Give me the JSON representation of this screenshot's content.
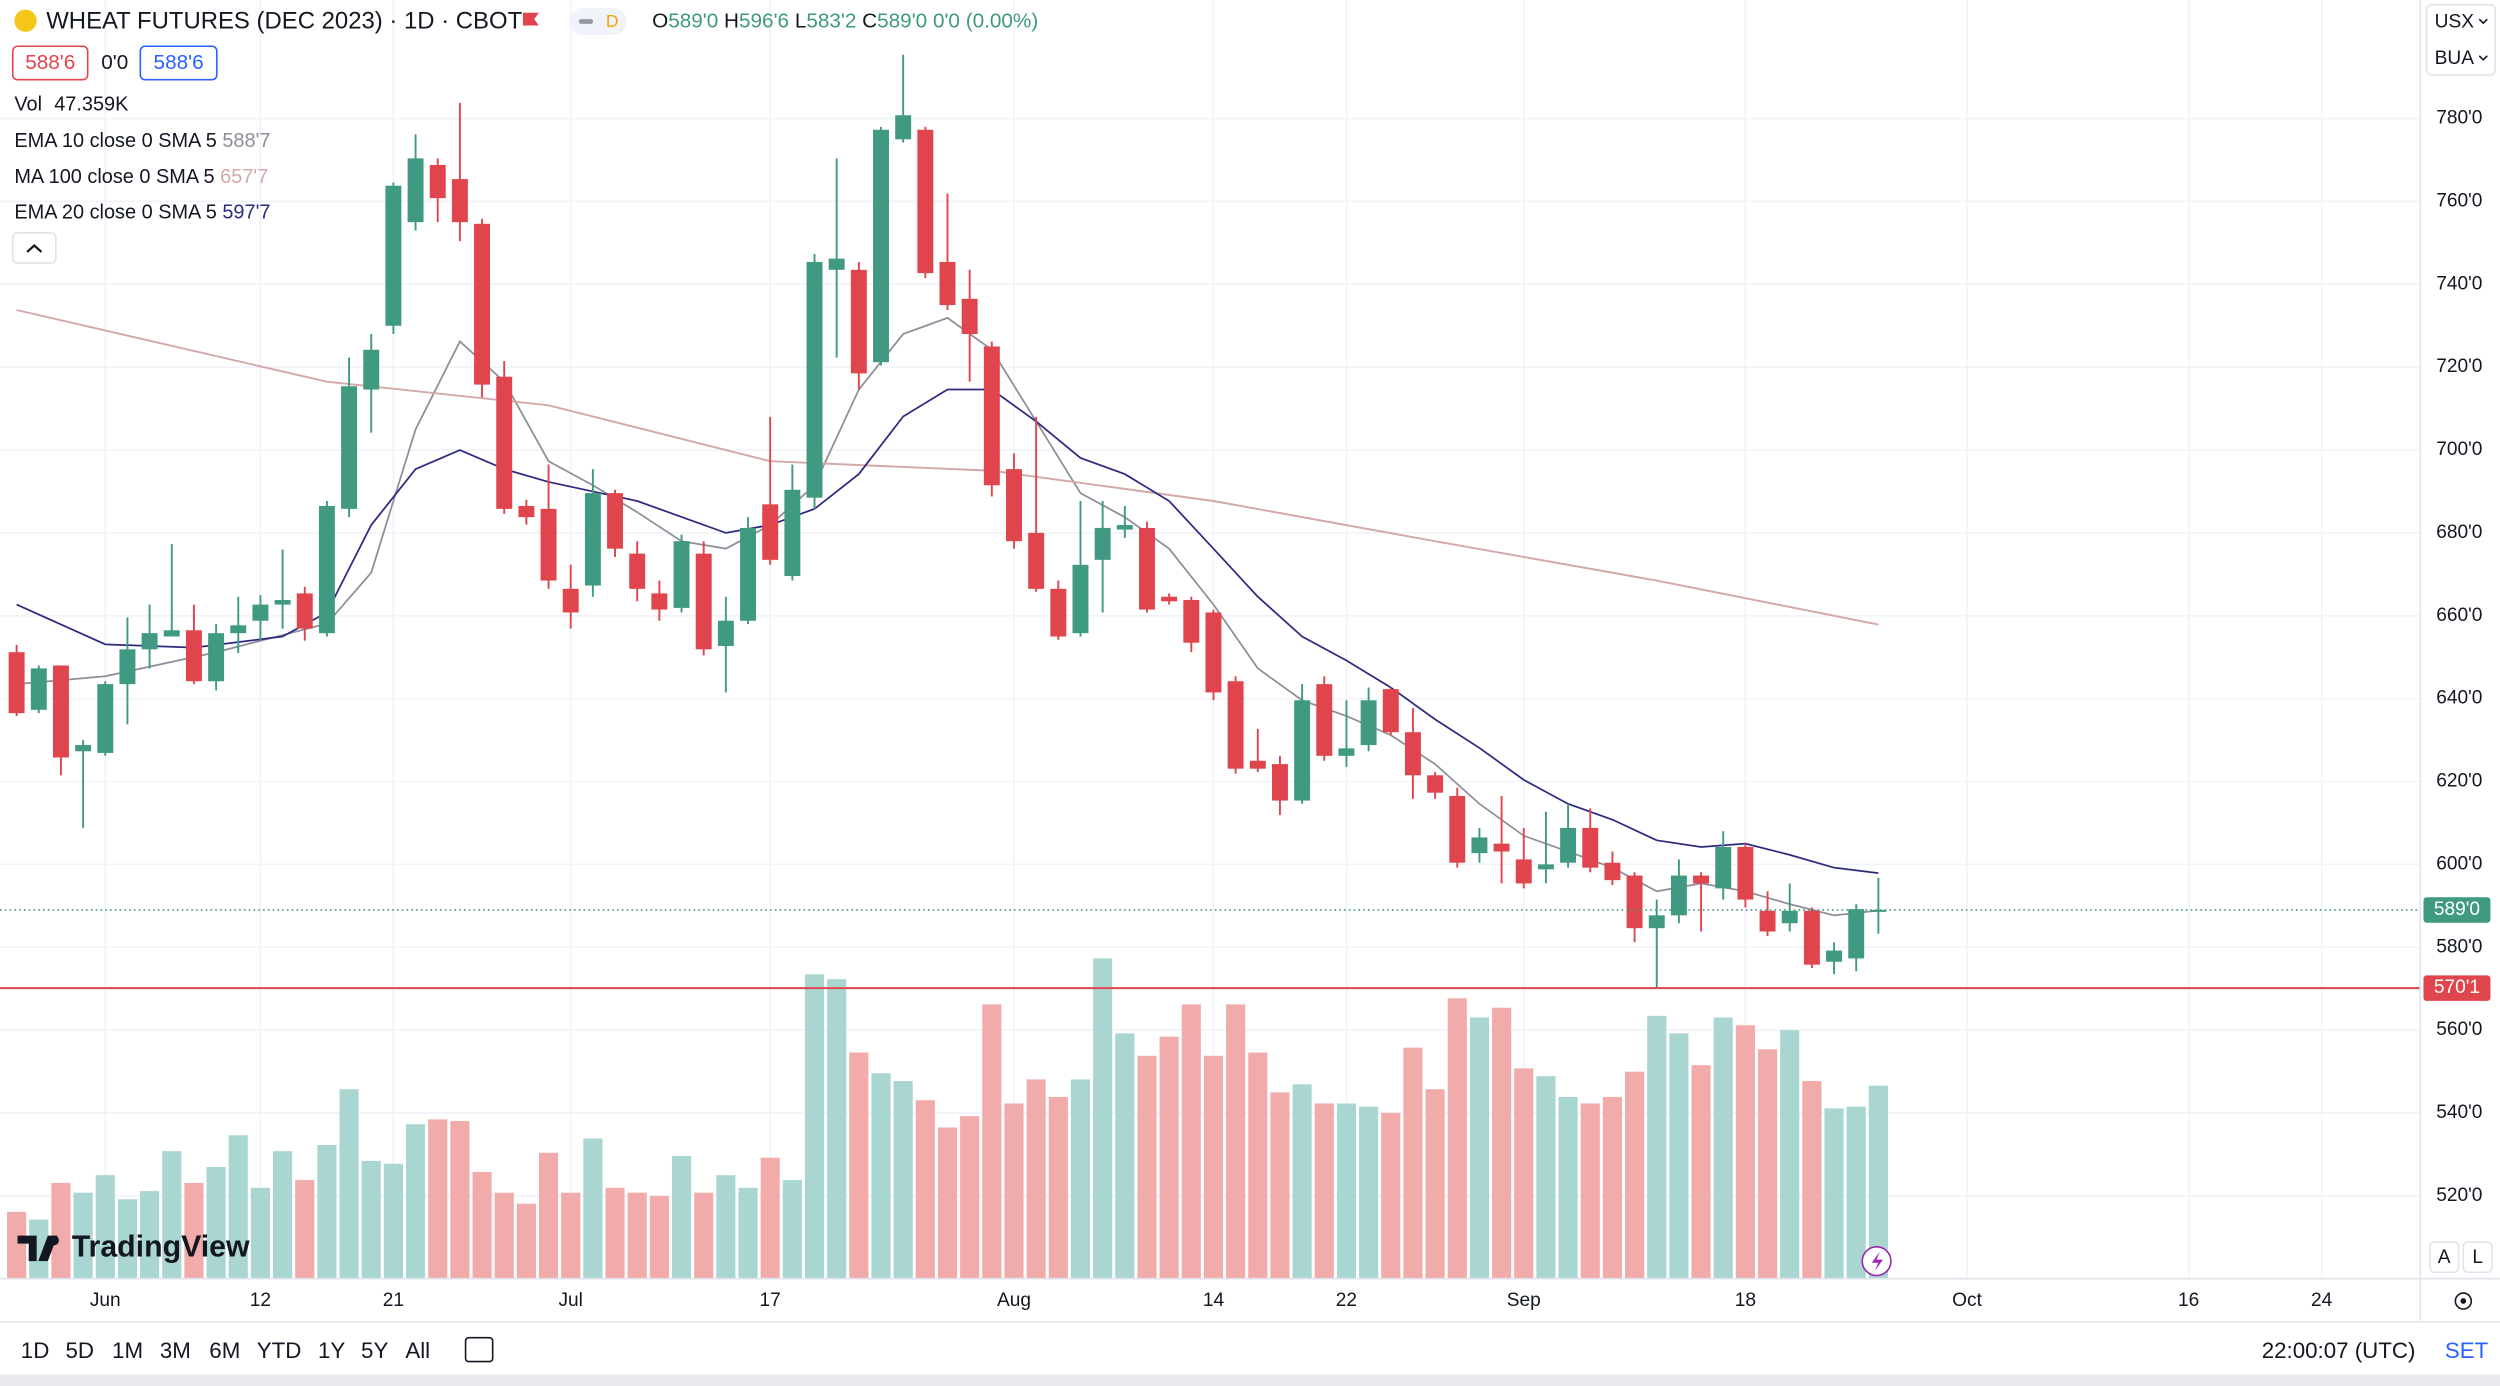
{
  "header": {
    "title": "WHEAT FUTURES (DEC 2023) · 1D · CBOT",
    "badge": "D",
    "ohlc": [
      {
        "label": "O",
        "value": "589'0"
      },
      {
        "label": "H",
        "value": "596'6"
      },
      {
        "label": "L",
        "value": "583'2"
      },
      {
        "label": "C",
        "value": "589'0"
      }
    ],
    "change": "0'0 (0.00%)"
  },
  "legend": {
    "bid": "588'6",
    "spread": "0'0",
    "ask": "588'6"
  },
  "units": [
    "USX",
    "BUA"
  ],
  "chart_data": {
    "type": "candlestick",
    "x": [
      -4,
      -3,
      -2,
      -1,
      0,
      1,
      2,
      3,
      4,
      5,
      6,
      7,
      8,
      9,
      10,
      11,
      12,
      13,
      14,
      15,
      16,
      17,
      18,
      19,
      20,
      21,
      22,
      23,
      24,
      25,
      26,
      27,
      28,
      29,
      30,
      31,
      32,
      33,
      34,
      35,
      36,
      37,
      38,
      39,
      40,
      41,
      42,
      43,
      44,
      45,
      46,
      47,
      48,
      49,
      50,
      51,
      52,
      53,
      54,
      55,
      56,
      57,
      58,
      59,
      60,
      61,
      62,
      63,
      64,
      65,
      66,
      67,
      68,
      69,
      70,
      71,
      72,
      73,
      74,
      75,
      76,
      77,
      78,
      79,
      80
    ],
    "open": [
      651.2,
      637.3,
      648,
      627.3,
      626.9,
      643.5,
      651.9,
      655,
      656.5,
      644.2,
      655.8,
      658.8,
      662.7,
      665.4,
      655.8,
      685.8,
      714.6,
      730,
      755,
      768.8,
      765.4,
      754.6,
      717.7,
      686.5,
      685.8,
      666.5,
      667.3,
      689.6,
      675,
      665.4,
      661.9,
      675,
      652.7,
      658.8,
      686.9,
      669.6,
      688.5,
      743.5,
      743.5,
      721.2,
      775,
      777.3,
      745.4,
      736.5,
      725,
      695.4,
      680,
      666.5,
      655.8,
      673.5,
      680.8,
      681.2,
      664.6,
      663.8,
      660.8,
      644.2,
      625,
      624.2,
      615.4,
      643.5,
      626.2,
      628.8,
      642.3,
      631.9,
      621.5,
      616.5,
      602.7,
      605,
      601.2,
      598.8,
      600.4,
      608.8,
      600.4,
      597.3,
      584.6,
      587.7,
      597.3,
      594.2,
      604.2,
      588.8,
      585.8,
      588.8,
      576.5,
      577.3,
      589
    ],
    "high": [
      653,
      648,
      648,
      630,
      644.2,
      659.6,
      662.7,
      677.3,
      662.7,
      658,
      664.6,
      665,
      676,
      667,
      687.7,
      722.3,
      728,
      764.6,
      776.2,
      770.4,
      783.8,
      755.8,
      721.5,
      688,
      696.5,
      672.3,
      695.4,
      690.4,
      678,
      668.5,
      679.6,
      678,
      664.6,
      683.8,
      708,
      696.5,
      747.3,
      770.4,
      745.4,
      778,
      795.4,
      778,
      761.9,
      743.5,
      726.2,
      699.2,
      708,
      668.5,
      687.7,
      687.7,
      686.5,
      682.7,
      665.4,
      664.6,
      661.5,
      645.4,
      632.7,
      626.2,
      643.5,
      645.4,
      639.6,
      642.7,
      642.7,
      637.7,
      622.3,
      618.5,
      608.8,
      616.5,
      608.8,
      612.7,
      614.6,
      613.5,
      603.1,
      598.1,
      591.5,
      601.2,
      598.1,
      608,
      605,
      593.5,
      595.4,
      589.6,
      581.2,
      590.4,
      596.75
    ],
    "low": [
      635.8,
      636.5,
      621.5,
      608.8,
      626.2,
      633.8,
      647.3,
      655,
      643.5,
      642,
      651,
      654,
      656.9,
      654,
      655,
      683.8,
      704.2,
      728,
      753,
      755,
      750.4,
      712.7,
      684.6,
      682,
      666.5,
      656.9,
      664.6,
      674.2,
      663.5,
      658.8,
      660.8,
      650.4,
      641.5,
      658,
      672.3,
      668.5,
      685.8,
      722.3,
      714.6,
      720.4,
      774.2,
      741.5,
      733.8,
      716.5,
      688.8,
      676.2,
      665.8,
      654.2,
      655,
      660.8,
      678.8,
      660.8,
      662.7,
      651.2,
      639.6,
      621.9,
      622.3,
      611.9,
      614.6,
      625,
      623.5,
      627.3,
      631.2,
      615.8,
      615.8,
      599.2,
      600.4,
      595.4,
      594.2,
      595.4,
      599.2,
      598.1,
      595,
      581.2,
      570.4,
      585.8,
      583.8,
      591.5,
      589.6,
      582.7,
      583.8,
      575,
      573.5,
      574.2,
      583.25
    ],
    "close": [
      636.5,
      647.3,
      625.8,
      628.8,
      643.5,
      651.9,
      655.8,
      656.5,
      644.2,
      655.8,
      657.7,
      662.7,
      663.8,
      656.9,
      686.5,
      715.4,
      724.2,
      763.8,
      770.4,
      760.8,
      755,
      715.8,
      685.8,
      683.8,
      668.5,
      660.8,
      689.6,
      676.2,
      666.5,
      661.5,
      678,
      651.9,
      658.8,
      681.2,
      673.5,
      690.4,
      745.4,
      746.2,
      718.5,
      777.3,
      780.8,
      742.7,
      735,
      728,
      691.5,
      678,
      666.5,
      655,
      672.3,
      681.2,
      681.9,
      661.5,
      663.5,
      653.5,
      641.5,
      623.1,
      623.1,
      615.4,
      639.6,
      626.2,
      628,
      639.6,
      631.9,
      621.5,
      617.3,
      600.4,
      606.5,
      603.1,
      595.4,
      600,
      608.8,
      599.2,
      596.2,
      584.6,
      587.7,
      597.3,
      595.4,
      604.2,
      591.5,
      583.8,
      588.8,
      575.8,
      579.2,
      589.2,
      589
    ],
    "up_color": "#3f9a81",
    "down_color": "#e0454d",
    "vol_up_color": "#a9d6d0",
    "vol_down_color": "#f2abab",
    "volume": {
      "name": "Vol",
      "axis": "y2",
      "last_label": "47.359K",
      "values": [
        16.4,
        14.5,
        23.5,
        21.1,
        25.4,
        19.5,
        21.5,
        31.3,
        23.5,
        27.4,
        35.2,
        22.3,
        31.3,
        24.2,
        32.8,
        46.5,
        28.9,
        28.2,
        37.9,
        39.1,
        38.7,
        26.2,
        21.1,
        18.4,
        30.9,
        21.1,
        34.4,
        22.3,
        21.1,
        20.3,
        30.1,
        21.1,
        25.4,
        22.3,
        29.7,
        24.2,
        74.7,
        73.5,
        55.5,
        50.4,
        48.5,
        43.8,
        37.1,
        39.9,
        67.3,
        43,
        48.9,
        44.6,
        48.9,
        78.6,
        60.2,
        54.7,
        59.4,
        67.3,
        54.7,
        67.3,
        55.5,
        45.7,
        47.7,
        43,
        43,
        42.2,
        40.7,
        56.7,
        46.5,
        68.8,
        64.1,
        66.5,
        51.6,
        49.7,
        44.6,
        43,
        44.6,
        50.8,
        64.5,
        60.2,
        52.4,
        64.1,
        62.2,
        56.3,
        61,
        48.5,
        41.8,
        42.2,
        47.359
      ]
    },
    "lines": [
      {
        "name": "EMA 10 close 0 SMA 5",
        "color": "#8e8e9a",
        "last_label": "588'7",
        "x": [
          -4,
          0,
          5,
          10,
          12,
          14,
          16,
          18,
          20,
          22,
          24,
          26,
          28,
          30,
          32,
          34,
          36,
          38,
          40,
          42,
          44,
          46,
          48,
          50,
          52,
          54,
          56,
          58,
          60,
          62,
          64,
          66,
          68,
          70,
          72,
          74,
          76,
          78,
          80
        ],
        "values": [
          643.5,
          645.4,
          651.2,
          658.1,
          670.4,
          705,
          726.2,
          716.5,
          697.3,
          691.5,
          685,
          678,
          676.2,
          681.9,
          691.5,
          714.6,
          728,
          731.9,
          724.2,
          706.9,
          689.6,
          683.8,
          676.2,
          662.7,
          647.3,
          639.6,
          635.8,
          631.2,
          624.2,
          614.6,
          606.9,
          603.1,
          599.2,
          593.5,
          595.4,
          593.5,
          590.4,
          587.7,
          588.875
        ]
      },
      {
        "name": "MA 100 close 0 SMA 5",
        "color": "#d4a8a8",
        "last_label": "657'7",
        "x": [
          -4,
          10,
          20,
          30,
          40,
          50,
          60,
          70,
          80
        ],
        "values": [
          733.8,
          716.5,
          710.8,
          697.3,
          695,
          687.7,
          678,
          668.5,
          657.875
        ]
      },
      {
        "name": "EMA 20 close 0 SMA 5",
        "color": "#2e2a80",
        "last_label": "597'7",
        "x": [
          -4,
          0,
          4,
          8,
          10,
          12,
          14,
          16,
          18,
          20,
          24,
          28,
          30,
          32,
          34,
          36,
          38,
          40,
          42,
          44,
          46,
          48,
          50,
          52,
          54,
          56,
          58,
          60,
          62,
          64,
          66,
          68,
          70,
          72,
          74,
          76,
          78,
          80
        ],
        "values": [
          662.7,
          653.1,
          652.3,
          655,
          660.8,
          681.9,
          695.4,
          700,
          695.4,
          692.3,
          687.7,
          680,
          681.9,
          685.8,
          694.2,
          708.1,
          714.6,
          714.6,
          706.9,
          698.1,
          694.2,
          687.7,
          676.2,
          664.6,
          655,
          649.2,
          642.7,
          635,
          628.1,
          620.4,
          614.6,
          610.8,
          605.8,
          604.2,
          605,
          602.3,
          599.2,
          597.875
        ]
      }
    ],
    "hlines": [
      {
        "value": 570.125,
        "label": "570'1",
        "color": "#e0454d"
      }
    ],
    "last_price": {
      "value": 589,
      "label": "589'0",
      "color": "#3f9a81"
    },
    "ylim": [
      500,
      799
    ],
    "y2lim": [
      0,
      304
    ],
    "xlim": [
      -4.75,
      104.45
    ],
    "yticks": [
      {
        "value": 520,
        "label": "520'0"
      },
      {
        "value": 540,
        "label": "540'0"
      },
      {
        "value": 560,
        "label": "560'0"
      },
      {
        "value": 580,
        "label": "580'0"
      },
      {
        "value": 600,
        "label": "600'0"
      },
      {
        "value": 620,
        "label": "620'0"
      },
      {
        "value": 640,
        "label": "640'0"
      },
      {
        "value": 660,
        "label": "660'0"
      },
      {
        "value": 680,
        "label": "680'0"
      },
      {
        "value": 700,
        "label": "700'0"
      },
      {
        "value": 720,
        "label": "720'0"
      },
      {
        "value": 740,
        "label": "740'0"
      },
      {
        "value": 760,
        "label": "760'0"
      },
      {
        "value": 780,
        "label": "780'0"
      }
    ],
    "xticks": [
      {
        "value": 0,
        "label": "Jun"
      },
      {
        "value": 7,
        "label": "12"
      },
      {
        "value": 13,
        "label": "21"
      },
      {
        "value": 21,
        "label": "Jul"
      },
      {
        "value": 30,
        "label": "17"
      },
      {
        "value": 41,
        "label": "Aug"
      },
      {
        "value": 50,
        "label": "14"
      },
      {
        "value": 56,
        "label": "22"
      },
      {
        "value": 64,
        "label": "Sep"
      },
      {
        "value": 74,
        "label": "18"
      },
      {
        "value": 84,
        "label": "Oct"
      },
      {
        "value": 94,
        "label": "16"
      },
      {
        "value": 100,
        "label": "24"
      }
    ],
    "grid": true
  },
  "brand": "TradingView",
  "scale_buttons": [
    "A",
    "L"
  ],
  "toolbar": {
    "ranges": [
      "1D",
      "5D",
      "1M",
      "3M",
      "6M",
      "YTD",
      "1Y",
      "5Y",
      "All"
    ],
    "clock": "22:00:07 (UTC)",
    "settings": "SET"
  }
}
